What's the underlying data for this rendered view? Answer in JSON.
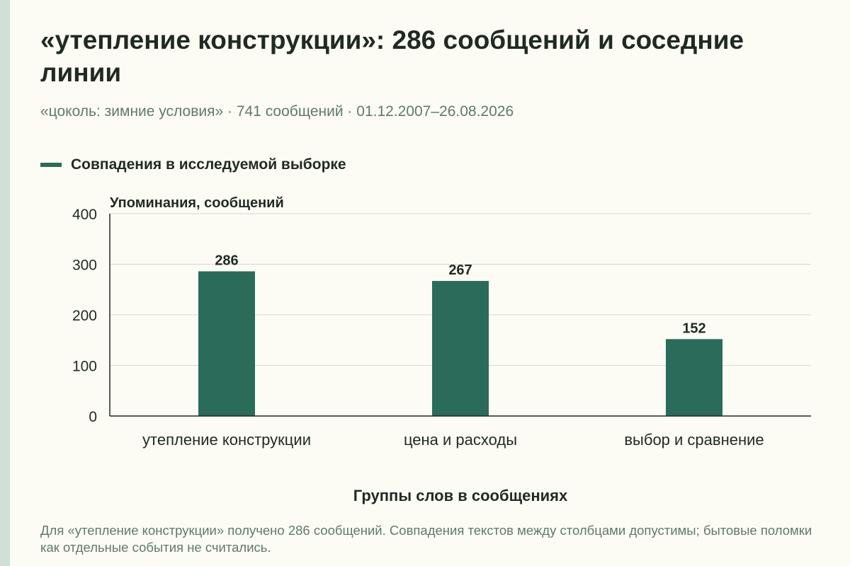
{
  "header": {
    "title": "«утепление конструкции»: 286 сообщений и соседние линии",
    "subtitle": "«цоколь: зимние условия» · 741 сообщений · 01.12.2007–26.08.2026"
  },
  "legend": {
    "label": "Совпадения в исследуемой выборке",
    "color": "#2a6b5a"
  },
  "chart_data": {
    "type": "bar",
    "categories": [
      "утепление конструкции",
      "цена и расходы",
      "выбор и сравнение"
    ],
    "series": [
      {
        "name": "Совпадения в исследуемой выборке",
        "values": [
          286,
          267,
          152
        ]
      }
    ],
    "ylabel": "Упоминания, сообщений",
    "xlabel": "Группы слов в сообщениях",
    "ylim": [
      0,
      400
    ],
    "yticks": [
      0,
      100,
      200,
      300,
      400
    ],
    "grid": true,
    "legend_position": "top-left",
    "bar_color": "#2a6b5a"
  },
  "footnote": "Для «утепление конструкции» получено 286 сообщений. Совпадения текстов между столбцами допустимы; бытовые поломки как отдельные события не считались."
}
